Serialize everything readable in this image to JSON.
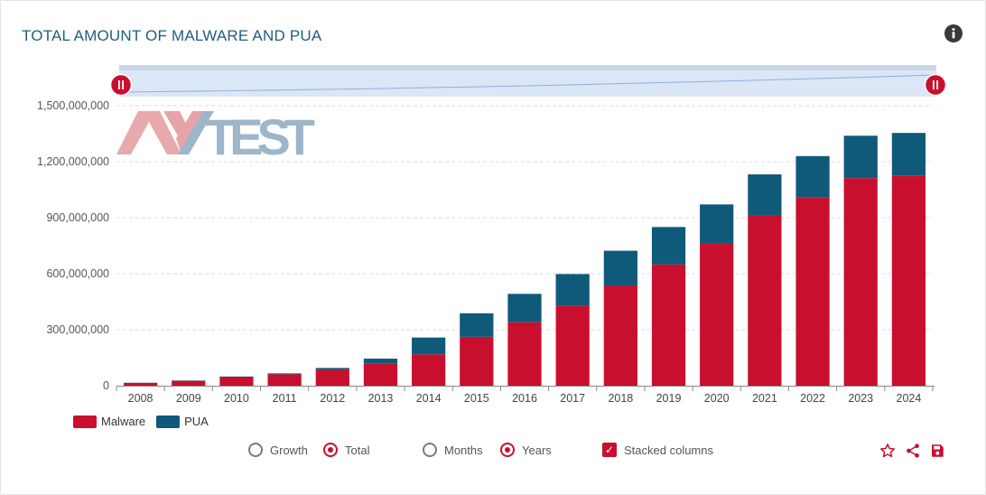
{
  "header": {
    "title": "TOTAL AMOUNT OF MALWARE AND PUA",
    "info_icon": "info-icon"
  },
  "watermark": {
    "text": "AV-TEST"
  },
  "colors": {
    "malware": "#c8102e",
    "pua": "#0f5a7a",
    "grid": "#dcdcdc",
    "navigator": "#dbe6f7"
  },
  "legend": [
    {
      "label": "Malware",
      "color": "#c8102e"
    },
    {
      "label": "PUA",
      "color": "#0f5a7a"
    }
  ],
  "controls": {
    "growth_label": "Growth",
    "total_label": "Total",
    "months_label": "Months",
    "years_label": "Years",
    "stacked_label": "Stacked columns",
    "selected_metric": "Total",
    "selected_period": "Years",
    "stacked": true
  },
  "toolbar": {
    "favorite_icon": "star-icon",
    "share_icon": "share-icon",
    "save_icon": "save-icon"
  },
  "chart_data": {
    "type": "bar",
    "stacked": true,
    "categories": [
      "2008",
      "2009",
      "2010",
      "2011",
      "2012",
      "2013",
      "2014",
      "2015",
      "2016",
      "2017",
      "2018",
      "2019",
      "2020",
      "2021",
      "2022",
      "2023",
      "2024"
    ],
    "series": [
      {
        "name": "Malware",
        "values": [
          15000000,
          26000000,
          46000000,
          61000000,
          85000000,
          120000000,
          168000000,
          262000000,
          340000000,
          430000000,
          537000000,
          650000000,
          760000000,
          910000000,
          1008000000,
          1112000000,
          1126000000
        ]
      },
      {
        "name": "PUA",
        "values": [
          1000000,
          2000000,
          3000000,
          5000000,
          10000000,
          25000000,
          90000000,
          126000000,
          152000000,
          168000000,
          186000000,
          200000000,
          211000000,
          222000000,
          222000000,
          227000000,
          228000000
        ]
      }
    ],
    "ylim": [
      0,
      1500000000
    ],
    "yticks": [
      0,
      300000000,
      600000000,
      900000000,
      1200000000,
      1500000000
    ],
    "ytick_labels": [
      "0",
      "300,000,000",
      "600,000,000",
      "900,000,000",
      "1,200,000,000",
      "1,500,000,000"
    ],
    "grid": true,
    "legend_position": "bottom-left",
    "navigator": true
  }
}
